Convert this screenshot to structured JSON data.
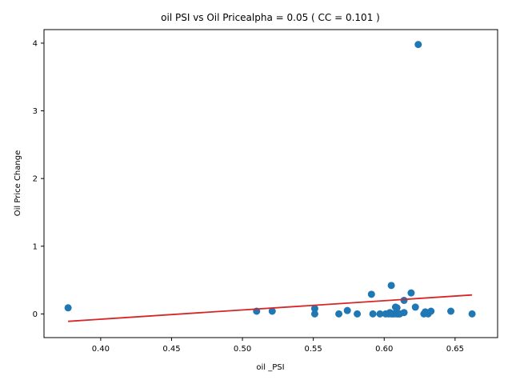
{
  "chart_data": {
    "type": "scatter",
    "title": "oil  PSI vs Oil Pricealpha = 0.05 ( CC = 0.101 )",
    "xlabel": "oil _PSI",
    "ylabel": "Oil Price Change",
    "xlim": [
      0.36,
      0.68
    ],
    "ylim": [
      -0.35,
      4.2
    ],
    "xticks": [
      0.4,
      0.45,
      0.5,
      0.55,
      0.6,
      0.65
    ],
    "xtick_labels": [
      "0.40",
      "0.45",
      "0.50",
      "0.55",
      "0.60",
      "0.65"
    ],
    "yticks": [
      0,
      1,
      2,
      3,
      4
    ],
    "ytick_labels": [
      "0",
      "1",
      "2",
      "3",
      "4"
    ],
    "grid": false,
    "colors": {
      "points": "#1f77b4",
      "fit_line": "#d62728"
    },
    "series": [
      {
        "type": "scatter",
        "x": [
          0.377,
          0.51,
          0.521,
          0.551,
          0.551,
          0.568,
          0.574,
          0.581,
          0.591,
          0.592,
          0.597,
          0.601,
          0.603,
          0.604,
          0.605,
          0.605,
          0.606,
          0.607,
          0.608,
          0.609,
          0.609,
          0.61,
          0.611,
          0.614,
          0.614,
          0.619,
          0.622,
          0.624,
          0.628,
          0.629,
          0.631,
          0.633,
          0.647,
          0.662
        ],
        "y": [
          0.09,
          0.04,
          0.04,
          0.0,
          0.08,
          0.0,
          0.05,
          0.0,
          0.29,
          0.0,
          0.0,
          0.0,
          0.0,
          0.02,
          0.42,
          0.0,
          0.0,
          0.0,
          0.1,
          0.0,
          0.09,
          0.0,
          0.0,
          0.2,
          0.02,
          0.31,
          0.1,
          3.98,
          0.0,
          0.03,
          0.0,
          0.04,
          0.04,
          0.0
        ]
      },
      {
        "type": "line",
        "x": [
          0.377,
          0.662
        ],
        "y": [
          -0.11,
          0.28
        ]
      }
    ]
  }
}
